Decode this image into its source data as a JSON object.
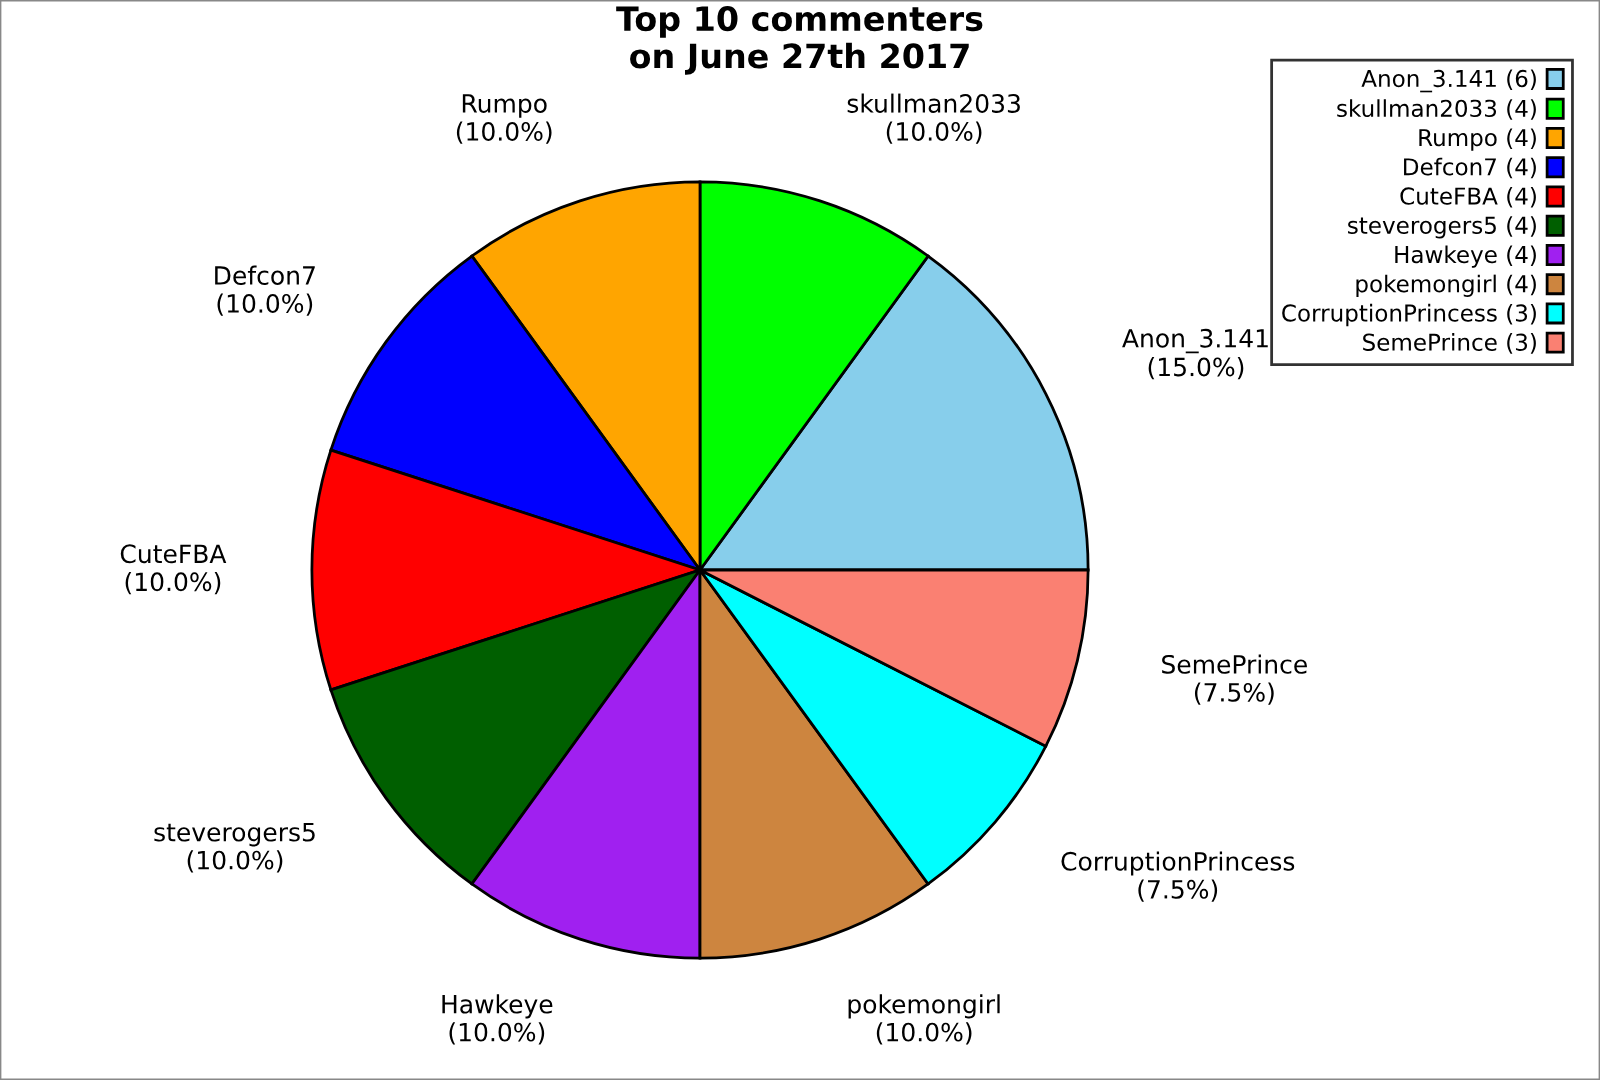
{
  "chart_data": {
    "type": "pie",
    "title": "Top 10 commenters\non June 27th 2017",
    "categories": [
      "Anon_3.141 (6)",
      "skullman2033 (4)",
      "Rumpo (4)",
      "Defcon7 (4)",
      "CuteFBA (4)",
      "steverogers5 (4)",
      "Hawkeye (4)",
      "pokemongirl (4)",
      "CorruptionPrincess (3)",
      "SemePrince (3)"
    ],
    "values": [
      15,
      10,
      10,
      10,
      10,
      10,
      10,
      10,
      7.5,
      7.5
    ],
    "value_labels": [
      "Anon_3.141\n(15.0%)",
      "skullman2033\n(10.0%)",
      "Rumpo\n(10.0%)",
      "Defcon7\n(10.0%)",
      "CuteFBA\n(10.0%)",
      "steverogers5\n(10.0%)",
      "Hawkeye\n(10.0%)",
      "pokemongirl\n(10.0%)",
      "CorruptionPrincess\n(7.5%)",
      "SemePrince\n(7.5%)"
    ],
    "colors": [
      "#87ceeb",
      "#00ff00",
      "#ffa500",
      "#0000ff",
      "#ff0000",
      "#005f00",
      "#a020f0",
      "#cd853f",
      "#00ffff",
      "#fa8072"
    ],
    "legend": "top right"
  }
}
